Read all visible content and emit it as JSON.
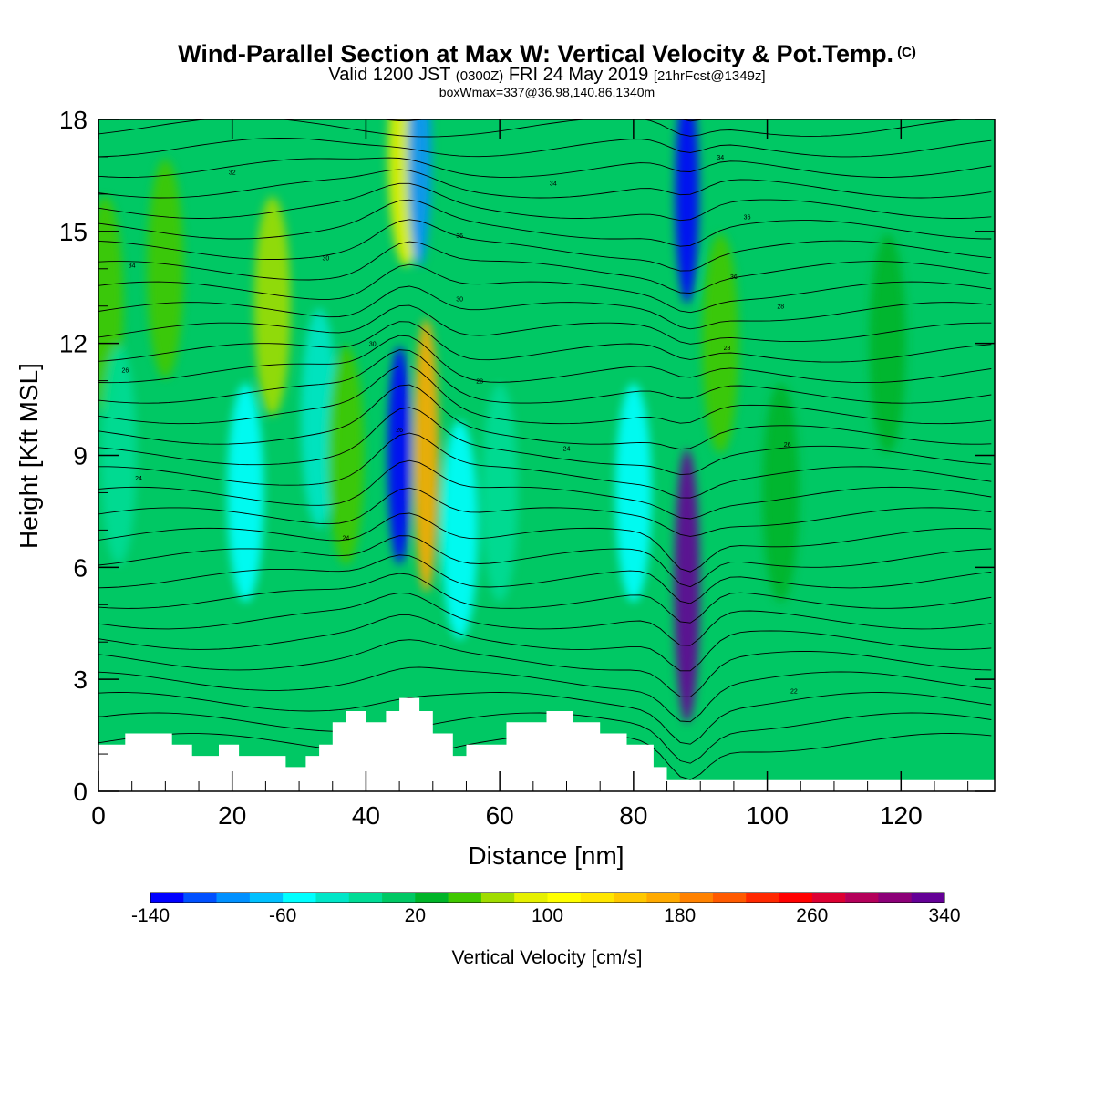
{
  "title": {
    "main": "Wind-Parallel Section at Max W: Vertical Velocity & Pot.Temp.",
    "copyright": "(C)",
    "valid_prefix": "Valid 1200 JST",
    "valid_utc": "(0300Z)",
    "valid_date": "FRI 24 May 2019",
    "forecast": "[21hrFcst@1349z]",
    "boxwmax": "boxWmax=337@36.98,140.86,1340m"
  },
  "colors": {
    "background_field": "#00c864",
    "terrain": "#ffffff"
  },
  "chart_data": {
    "type": "heatmap",
    "xlabel": "Distance [nm]",
    "ylabel": "Height [Kft MSL]",
    "xlim": [
      0,
      134
    ],
    "ylim": [
      0,
      18
    ],
    "xticks": [
      0,
      20,
      40,
      60,
      80,
      100,
      120
    ],
    "yticks": [
      0,
      3,
      6,
      9,
      12,
      15,
      18
    ],
    "colorbar": {
      "label": "Vertical Velocity [cm/s]",
      "tick_labels": [
        -140,
        -60,
        20,
        100,
        180,
        260,
        340
      ],
      "levels": [
        -140,
        -120,
        -100,
        -80,
        -60,
        -40,
        -20,
        0,
        20,
        40,
        60,
        80,
        100,
        120,
        140,
        160,
        180,
        200,
        220,
        240,
        260,
        280,
        300,
        320,
        340
      ],
      "colors": [
        "#0000ff",
        "#0050ff",
        "#0090ff",
        "#00c0ff",
        "#00ffff",
        "#00e6c8",
        "#00dc96",
        "#00c864",
        "#00b428",
        "#40c800",
        "#a0dc00",
        "#e6f000",
        "#ffff00",
        "#ffe600",
        "#ffc800",
        "#ffaa00",
        "#ff8200",
        "#ff5a00",
        "#ff2800",
        "#ff0000",
        "#dc0032",
        "#b4005a",
        "#8c0078",
        "#640096"
      ]
    },
    "velocity_features": [
      {
        "x": 1,
        "y": 13.0,
        "value": 40
      },
      {
        "x": 3,
        "y": 9.0,
        "value": -10
      },
      {
        "x": 10,
        "y": 14.0,
        "value": 40
      },
      {
        "x": 22,
        "y": 8.0,
        "value": -60
      },
      {
        "x": 26,
        "y": 13.0,
        "value": 60
      },
      {
        "x": 33,
        "y": 10.0,
        "value": -30
      },
      {
        "x": 37,
        "y": 9.0,
        "value": 40
      },
      {
        "x": 45,
        "y": 9.0,
        "value": -140
      },
      {
        "x": 49,
        "y": 9.0,
        "value": 160
      },
      {
        "x": 46,
        "y": 17.0,
        "value": 80
      },
      {
        "x": 48,
        "y": 17.0,
        "value": -100
      },
      {
        "x": 54,
        "y": 7.0,
        "value": -60
      },
      {
        "x": 60,
        "y": 8.0,
        "value": -20
      },
      {
        "x": 80,
        "y": 8.0,
        "value": -60
      },
      {
        "x": 88,
        "y": 5.5,
        "value": 337
      },
      {
        "x": 88,
        "y": 16.0,
        "value": -140
      },
      {
        "x": 93,
        "y": 12.0,
        "value": 40
      },
      {
        "x": 102,
        "y": 8.0,
        "value": 20
      },
      {
        "x": 118,
        "y": 12.0,
        "value": 20
      }
    ],
    "isentrope_labels": [
      "32",
      "34",
      "34",
      "36",
      "36",
      "30",
      "34",
      "36",
      "30",
      "28",
      "30",
      "28",
      "28",
      "26",
      "26",
      "26",
      "24",
      "24",
      "24",
      "22"
    ],
    "terrain_profile": {
      "x": [
        0,
        4,
        4,
        11,
        11,
        14,
        14,
        18,
        18,
        21,
        21,
        28,
        28,
        31,
        31,
        33,
        33,
        35,
        35,
        37,
        37,
        40,
        40,
        43,
        43,
        45,
        45,
        48,
        48,
        50,
        50,
        53,
        53,
        55,
        55,
        61,
        61,
        67,
        67,
        71,
        71,
        75,
        75,
        79,
        79,
        83,
        83,
        85,
        85,
        87,
        87,
        89,
        89,
        134
      ],
      "y": [
        1.25,
        1.25,
        1.55,
        1.55,
        1.25,
        1.25,
        0.95,
        0.95,
        1.25,
        1.25,
        0.95,
        0.95,
        0.65,
        0.65,
        0.95,
        0.95,
        1.25,
        1.25,
        1.85,
        1.85,
        2.15,
        2.15,
        1.85,
        1.85,
        2.15,
        2.15,
        2.5,
        2.5,
        2.15,
        2.15,
        1.55,
        1.55,
        0.95,
        0.95,
        1.25,
        1.25,
        1.85,
        1.85,
        2.15,
        2.15,
        1.85,
        1.85,
        1.55,
        1.55,
        1.25,
        1.25,
        0.65,
        0.65,
        0.3,
        0.3,
        0.3,
        0.3,
        0.3,
        0.3
      ]
    }
  }
}
